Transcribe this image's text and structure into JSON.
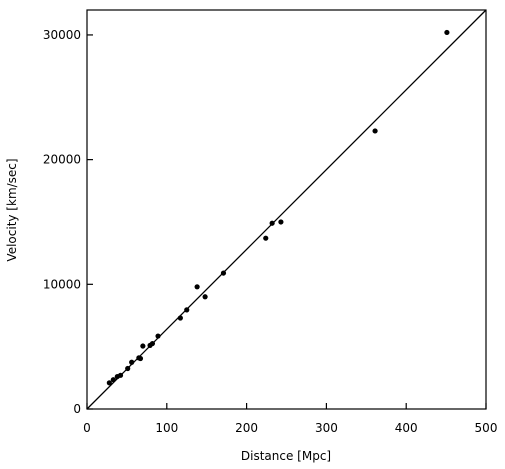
{
  "chart_data": {
    "type": "scatter",
    "title": "",
    "xlabel": "Distance [Mpc]",
    "ylabel": "Velocity [km/sec]",
    "xlim": [
      0,
      500
    ],
    "ylim": [
      0,
      32000
    ],
    "xticks": [
      0,
      100,
      200,
      300,
      400,
      500
    ],
    "yticks": [
      0,
      10000,
      20000,
      30000
    ],
    "xtick_labels": [
      "0",
      "100",
      "200",
      "300",
      "400",
      "500"
    ],
    "ytick_labels": [
      "0",
      "10000",
      "20000",
      "30000"
    ],
    "grid": false,
    "legend": "none",
    "colors": {
      "marker": "#000000",
      "line": "#000000",
      "axes": "#000000"
    },
    "series": [
      {
        "values": [
          {
            "x": 28,
            "y": 2100
          },
          {
            "x": 33,
            "y": 2350
          },
          {
            "x": 38,
            "y": 2600
          },
          {
            "x": 42,
            "y": 2700
          },
          {
            "x": 51,
            "y": 3250
          },
          {
            "x": 56,
            "y": 3750
          },
          {
            "x": 65,
            "y": 4100
          },
          {
            "x": 67,
            "y": 4050
          },
          {
            "x": 70,
            "y": 5050
          },
          {
            "x": 79,
            "y": 5100
          },
          {
            "x": 82,
            "y": 5250
          },
          {
            "x": 89,
            "y": 5850
          },
          {
            "x": 117,
            "y": 7300
          },
          {
            "x": 125,
            "y": 7950
          },
          {
            "x": 138,
            "y": 9800
          },
          {
            "x": 148,
            "y": 9000
          },
          {
            "x": 171,
            "y": 10900
          },
          {
            "x": 224,
            "y": 13700
          },
          {
            "x": 232,
            "y": 14900
          },
          {
            "x": 243,
            "y": 15000
          },
          {
            "x": 361,
            "y": 22300
          },
          {
            "x": 451,
            "y": 30200
          }
        ]
      }
    ],
    "fit_line": {
      "slope": 64,
      "intercept": 0,
      "x_range": [
        0,
        500
      ]
    }
  }
}
